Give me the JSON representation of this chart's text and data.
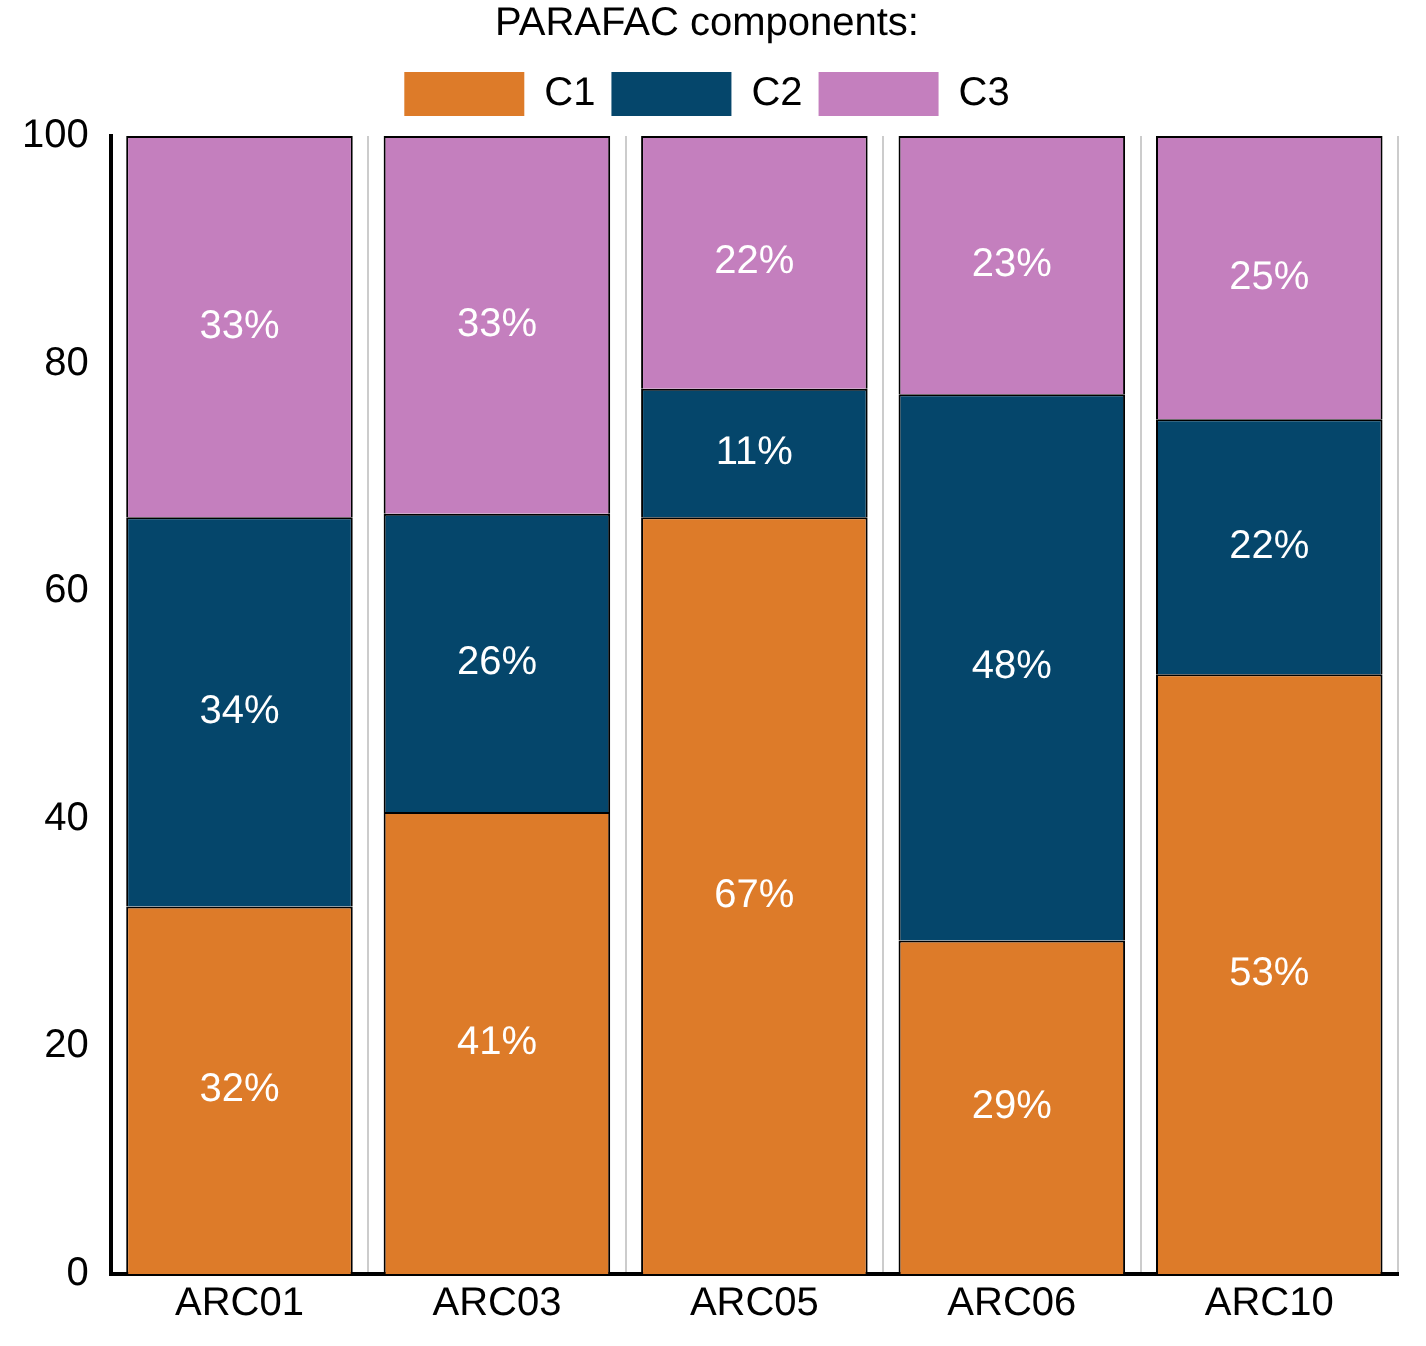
{
  "chart_data": {
    "type": "bar",
    "stacked": true,
    "legend": "top",
    "legend_title": "PARAFAC components:",
    "grid": "x",
    "categories": [
      "ARC01",
      "ARC03",
      "ARC05",
      "ARC06",
      "ARC10"
    ],
    "series": [
      {
        "name": "C1",
        "color": "#dd7b29",
        "values": [
          32.3,
          40.6,
          66.5,
          29.3,
          52.7
        ],
        "value_labels": [
          "32%",
          "41%",
          "67%",
          "29%",
          "53%"
        ]
      },
      {
        "name": "C2",
        "color": "#05466b",
        "values": [
          34.2,
          26.2,
          11.3,
          48.0,
          22.4
        ],
        "value_labels": [
          "34%",
          "26%",
          "11%",
          "48%",
          "22%"
        ]
      },
      {
        "name": "C3",
        "color": "#c47fbe",
        "values": [
          33.5,
          33.2,
          22.2,
          22.7,
          24.9
        ],
        "value_labels": [
          "33%",
          "33%",
          "22%",
          "23%",
          "25%"
        ]
      }
    ],
    "ylim": [
      0,
      100
    ],
    "yticks": [
      0,
      20,
      40,
      60,
      80,
      100
    ]
  }
}
